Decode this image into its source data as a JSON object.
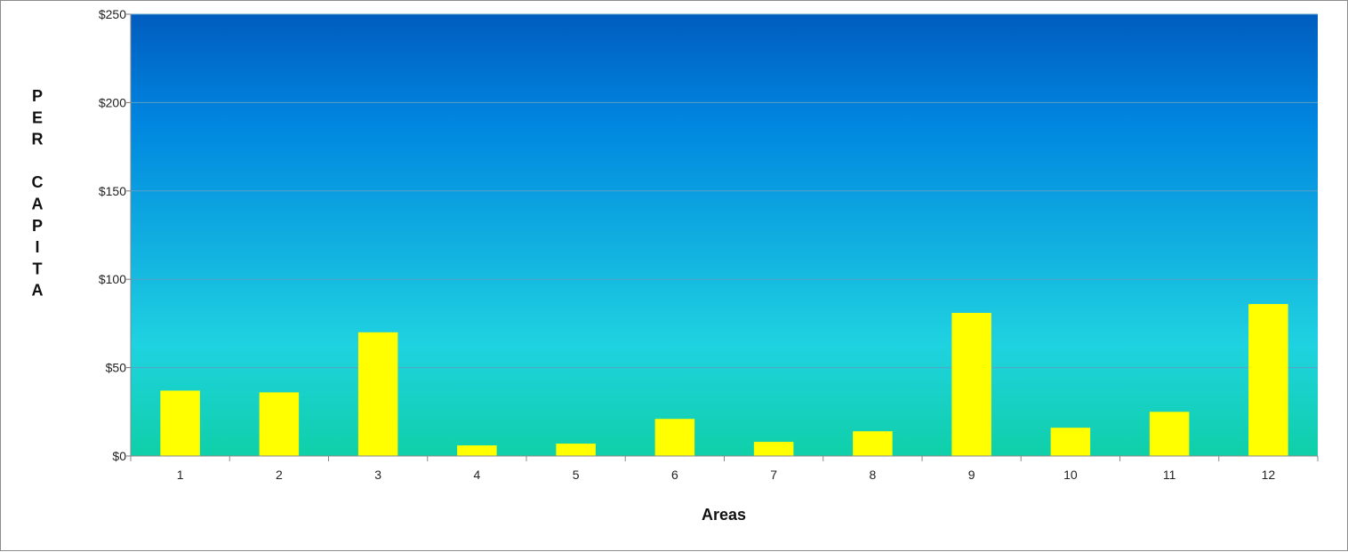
{
  "chart_data": {
    "type": "bar",
    "title": "",
    "xlabel": "Areas",
    "ylabel": "PER CAPITA",
    "categories": [
      "1",
      "2",
      "3",
      "4",
      "5",
      "6",
      "7",
      "8",
      "9",
      "10",
      "11",
      "12"
    ],
    "values": [
      37,
      36,
      70,
      6,
      7,
      21,
      8,
      14,
      81,
      16,
      25,
      86
    ],
    "ylim": [
      0,
      250
    ],
    "yticks": [
      0,
      50,
      100,
      150,
      200,
      250
    ],
    "ytick_labels": [
      "$0",
      "$50",
      "$100",
      "$150",
      "$200",
      "$250"
    ],
    "grid": true,
    "legend": "none",
    "colors": {
      "bar": "#ffff00",
      "background_top": "#005cbf",
      "background_mid": "#1fd2e0",
      "background_bottom": "#0fd0a8",
      "gridline": "#5aa0c8"
    }
  }
}
